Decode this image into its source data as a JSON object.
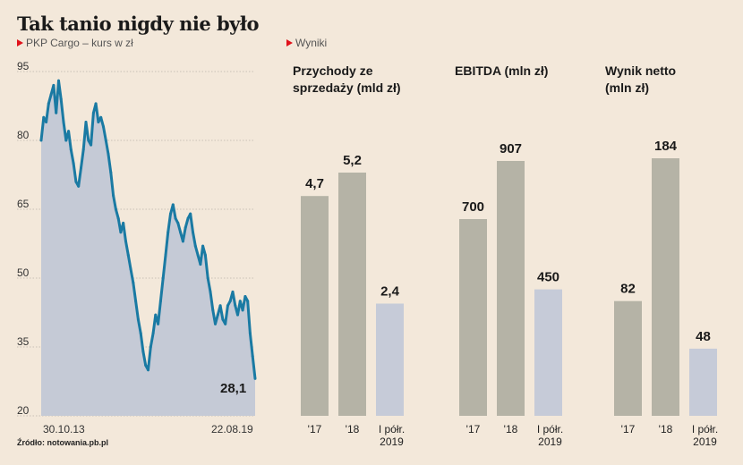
{
  "title": "Tak tanio nigdy nie było",
  "subtitle_left": "PKP Cargo – kurs w zł",
  "subtitle_right": "Wyniki",
  "source": "Źródło: notowania.pb.pl",
  "colors": {
    "background": "#f3e8da",
    "line": "#1a7aa3",
    "area": "#c5cad6",
    "bar_past": "#b5b3a6",
    "bar_current": "#c6cbd8",
    "subtitle_marker": "#e0121b"
  },
  "chart_data": [
    {
      "type": "area",
      "title": "PKP Cargo – kurs w zł",
      "ylim": [
        20,
        95
      ],
      "yticks": [
        95,
        80,
        65,
        50,
        35,
        20
      ],
      "x_tick_labels": [
        "30.10.13",
        "22.08.19"
      ],
      "grid": true,
      "last_value_label": "28,1",
      "series": [
        {
          "values": [
            80,
            85,
            84,
            88,
            90,
            92,
            86,
            93,
            89,
            84,
            80,
            82,
            78,
            75,
            71,
            70,
            74,
            78,
            84,
            80,
            79,
            86,
            88,
            84,
            85,
            83,
            80,
            77,
            73,
            68,
            65,
            63,
            60,
            62,
            58,
            55,
            52,
            49,
            45,
            41,
            38,
            34,
            31,
            30,
            35,
            38,
            42,
            40,
            45,
            50,
            55,
            60,
            64,
            66,
            63,
            62,
            60,
            58,
            61,
            63,
            64,
            60,
            57,
            55,
            53,
            57,
            55,
            50,
            47,
            43,
            40,
            42,
            44,
            41,
            40,
            44,
            45,
            47,
            44,
            42,
            45,
            43,
            46,
            45,
            38,
            33,
            28.1
          ]
        }
      ]
    },
    {
      "type": "bar",
      "title": "Przychody ze sprzedaży (mld zł)",
      "categories": [
        "'17",
        "'18",
        "I półr. 2019"
      ],
      "values": [
        4.7,
        5.2,
        2.4
      ],
      "value_labels": [
        "4,7",
        "5,2",
        "2,4"
      ]
    },
    {
      "type": "bar",
      "title": "EBITDA (mln zł)",
      "categories": [
        "'17",
        "'18",
        "I półr. 2019"
      ],
      "values": [
        700,
        907,
        450
      ],
      "value_labels": [
        "700",
        "907",
        "450"
      ]
    },
    {
      "type": "bar",
      "title": "Wynik netto (mln zł)",
      "categories": [
        "'17",
        "'18",
        "I półr. 2019"
      ],
      "values": [
        82,
        184,
        48
      ],
      "value_labels": [
        "82",
        "184",
        "48"
      ]
    }
  ]
}
